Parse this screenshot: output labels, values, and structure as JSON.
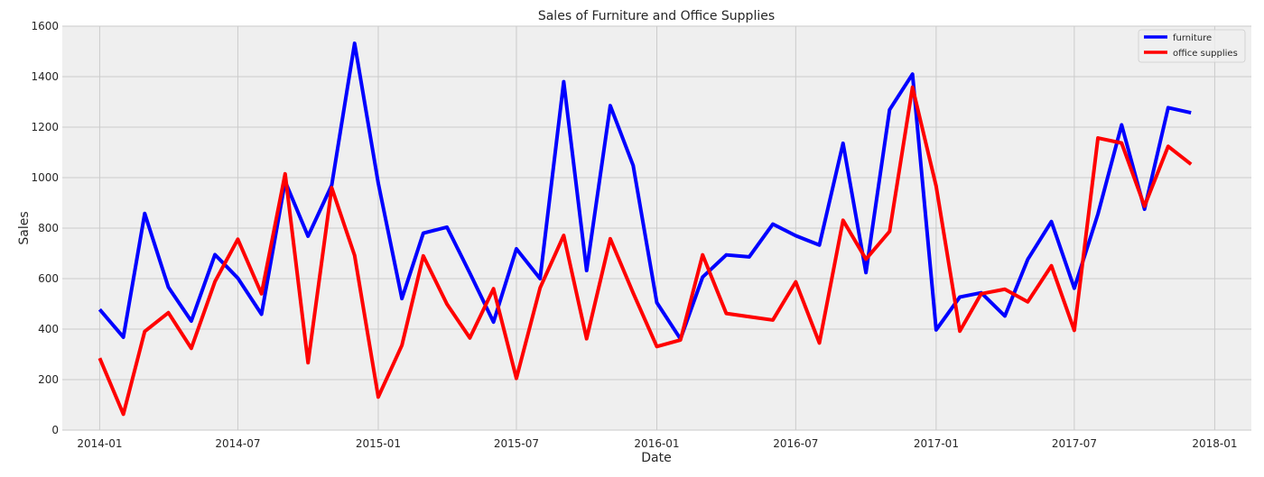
{
  "chart_data": {
    "type": "line",
    "title": "Sales of Furniture and Office Supplies",
    "xlabel": "Date",
    "ylabel": "Sales",
    "ylim": [
      0,
      1600
    ],
    "xlim": [
      "2013-11-13",
      "2018-02-18"
    ],
    "y_ticks": [
      0,
      200,
      400,
      600,
      800,
      1000,
      1200,
      1400,
      1600
    ],
    "x_ticks": [
      {
        "date": "2014-01-01",
        "label": "2014-01"
      },
      {
        "date": "2014-07-01",
        "label": "2014-07"
      },
      {
        "date": "2015-01-01",
        "label": "2015-01"
      },
      {
        "date": "2015-07-01",
        "label": "2015-07"
      },
      {
        "date": "2016-01-01",
        "label": "2016-01"
      },
      {
        "date": "2016-07-01",
        "label": "2016-07"
      },
      {
        "date": "2017-01-01",
        "label": "2017-01"
      },
      {
        "date": "2017-07-01",
        "label": "2017-07"
      },
      {
        "date": "2018-01-01",
        "label": "2018-01"
      }
    ],
    "grid": true,
    "legend_position": "top-right",
    "x": [
      "2014-01-01",
      "2014-02-01",
      "2014-03-01",
      "2014-04-01",
      "2014-05-01",
      "2014-06-01",
      "2014-07-01",
      "2014-08-01",
      "2014-09-01",
      "2014-10-01",
      "2014-11-01",
      "2014-12-01",
      "2015-01-01",
      "2015-02-01",
      "2015-03-01",
      "2015-04-01",
      "2015-05-01",
      "2015-06-01",
      "2015-07-01",
      "2015-08-01",
      "2015-09-01",
      "2015-10-01",
      "2015-11-01",
      "2015-12-01",
      "2016-01-01",
      "2016-02-01",
      "2016-03-01",
      "2016-04-01",
      "2016-05-01",
      "2016-06-01",
      "2016-07-01",
      "2016-08-01",
      "2016-09-01",
      "2016-10-01",
      "2016-11-01",
      "2016-12-01",
      "2017-01-01",
      "2017-02-01",
      "2017-03-01",
      "2017-04-01",
      "2017-05-01",
      "2017-06-01",
      "2017-07-01",
      "2017-08-01",
      "2017-09-01",
      "2017-10-01",
      "2017-11-01",
      "2017-12-01"
    ],
    "series": [
      {
        "name": "furniture",
        "color": "#0000ff",
        "values": [
          478,
          368,
          858,
          566,
          432,
          695,
          602,
          459,
          985,
          768,
          970,
          1532,
          978,
          521,
          780,
          804,
          622,
          428,
          718,
          600,
          1380,
          632,
          1285,
          1048,
          505,
          361,
          606,
          694,
          686,
          816,
          770,
          733,
          1136,
          624,
          1269,
          1410,
          397,
          527,
          544,
          452,
          676,
          826,
          562,
          856,
          1209,
          875,
          1277,
          1257
        ]
      },
      {
        "name": "office supplies",
        "color": "#ff0000",
        "values": [
          285,
          63,
          391,
          465,
          324,
          588,
          756,
          540,
          1015,
          267,
          960,
          692,
          131,
          336,
          690,
          499,
          365,
          560,
          205,
          563,
          771,
          362,
          758,
          543,
          331,
          357,
          694,
          462,
          449,
          436,
          587,
          345,
          831,
          677,
          787,
          1358,
          966,
          392,
          540,
          558,
          508,
          651,
          395,
          1157,
          1137,
          887,
          1124,
          1053
        ]
      }
    ]
  }
}
